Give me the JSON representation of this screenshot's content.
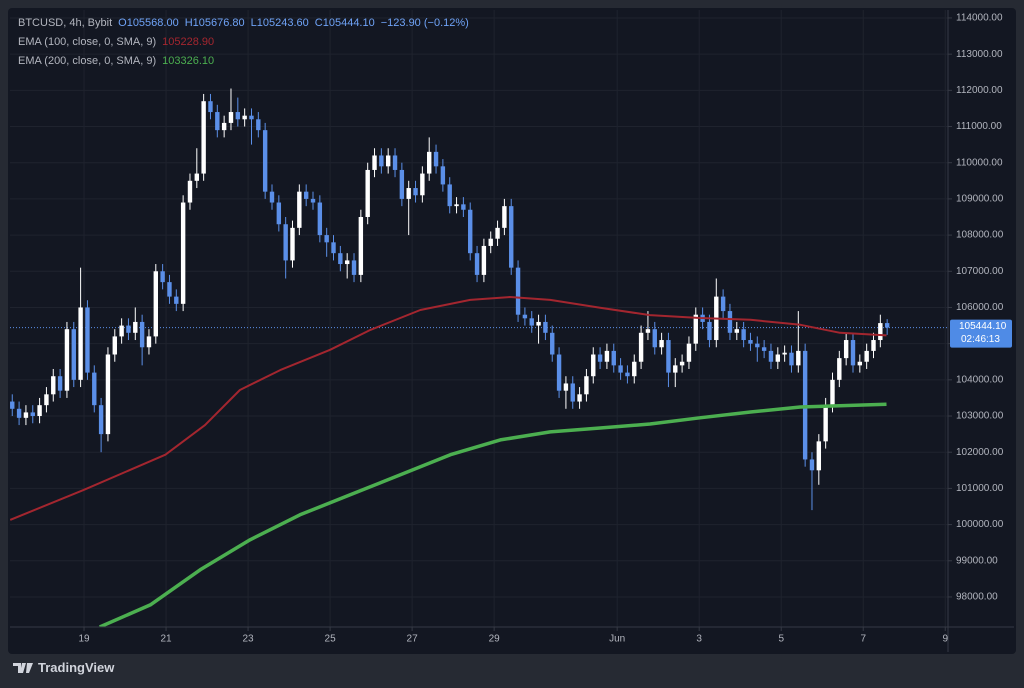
{
  "chart_data": {
    "type": "candlestick",
    "header": [
      "BTCUSD, 4h, Bybit",
      "O105568.00",
      "H105676.80",
      "L105243.60",
      "C105444.10",
      "−123.90 (−0.12%)"
    ],
    "candles": {
      "open": [
        103400,
        103200,
        102950,
        103100,
        103000,
        103300,
        103600,
        104100,
        103700,
        105400,
        104000,
        106000,
        104200,
        103300,
        102500,
        104700,
        105200,
        105500,
        105300,
        105600,
        104900,
        105200,
        107000,
        106700,
        106300,
        106100,
        108900,
        109500,
        109700,
        111700,
        111400,
        110900,
        111100,
        111400,
        111200,
        111300,
        111200,
        110900,
        109200,
        108900,
        108300,
        107300,
        108200,
        109200,
        109000,
        108900,
        108000,
        107800,
        107500,
        107200,
        107300,
        106900,
        108500,
        109800,
        110200,
        109900,
        110200,
        109800,
        109000,
        109300,
        109100,
        109700,
        110300,
        109900,
        109400,
        108800,
        108850,
        108700,
        107500,
        106900,
        107700,
        107900,
        108200,
        108800,
        107100,
        105800,
        105700,
        105500,
        105600,
        105300,
        104700,
        103700,
        103900,
        103400,
        103600,
        104100,
        104700,
        104500,
        104800,
        104400,
        104200,
        104100,
        104500,
        105300,
        105400,
        104900,
        105100,
        104200,
        104400,
        104500,
        105000,
        105800,
        105600,
        105100,
        106300,
        105900,
        105300,
        105400,
        105100,
        105000,
        104900,
        104800,
        104500,
        104700,
        104750,
        104400,
        104800,
        101800,
        101500,
        102300,
        103300,
        104000,
        104600,
        105100,
        104400,
        104500,
        104800,
        105100,
        105568
      ],
      "high": [
        103600,
        103400,
        103300,
        103300,
        103500,
        103800,
        104300,
        104300,
        105600,
        105600,
        107100,
        106200,
        104400,
        103500,
        104900,
        105400,
        105700,
        105700,
        106000,
        105800,
        105400,
        107200,
        107200,
        106900,
        106500,
        109100,
        109700,
        110400,
        111900,
        111900,
        111600,
        111300,
        112050,
        111800,
        111500,
        111500,
        111400,
        111100,
        109400,
        109100,
        108500,
        108400,
        109400,
        109400,
        109200,
        109100,
        108200,
        108000,
        107700,
        107500,
        107500,
        108700,
        110000,
        110400,
        110400,
        110400,
        110400,
        110000,
        109500,
        109500,
        109900,
        110700,
        110500,
        110100,
        109600,
        109050,
        109050,
        108900,
        107700,
        107900,
        108100,
        108400,
        109000,
        109000,
        107300,
        106000,
        105900,
        105800,
        105800,
        105500,
        104900,
        104100,
        104100,
        103800,
        104300,
        104900,
        104900,
        105000,
        105000,
        104600,
        104400,
        104700,
        105500,
        105900,
        105600,
        105300,
        105300,
        104600,
        104700,
        105200,
        106000,
        106000,
        105800,
        106800,
        106500,
        106100,
        105600,
        105600,
        105300,
        105200,
        105100,
        105000,
        104900,
        104950,
        104950,
        105900,
        105000,
        102000,
        102500,
        103500,
        104200,
        104800,
        105300,
        105300,
        104700,
        105000,
        105300,
        105800,
        105676.8
      ],
      "low": [
        103000,
        102750,
        102750,
        102800,
        102800,
        103100,
        103400,
        103500,
        103500,
        103800,
        103800,
        104000,
        103100,
        102000,
        102300,
        104500,
        105000,
        105100,
        105100,
        104400,
        104700,
        105000,
        106500,
        106100,
        105900,
        105900,
        108700,
        109300,
        109500,
        111200,
        110700,
        110700,
        110900,
        111000,
        111000,
        110500,
        110700,
        109000,
        108700,
        108100,
        106800,
        107100,
        108000,
        108800,
        108700,
        107800,
        107400,
        107300,
        107000,
        106800,
        106700,
        106700,
        108300,
        109600,
        109700,
        109700,
        109600,
        108800,
        108000,
        108900,
        108900,
        109500,
        109700,
        109200,
        108600,
        108600,
        108500,
        107300,
        106700,
        106700,
        107500,
        107700,
        108000,
        106900,
        105600,
        105500,
        105300,
        105000,
        105100,
        104500,
        103500,
        103200,
        103200,
        103200,
        103400,
        103900,
        104300,
        104300,
        104200,
        104000,
        103900,
        103900,
        104300,
        105100,
        104700,
        104700,
        103800,
        103800,
        104200,
        104300,
        104800,
        105400,
        104900,
        104900,
        105700,
        105100,
        105100,
        104900,
        104800,
        104500,
        104600,
        104300,
        104300,
        104500,
        104200,
        104200,
        101600,
        100400,
        101100,
        102100,
        103100,
        103800,
        104400,
        104200,
        104200,
        104300,
        104600,
        104900,
        105243.6
      ],
      "close": [
        103200,
        102950,
        103100,
        103000,
        103300,
        103600,
        104100,
        103700,
        105400,
        104000,
        106000,
        104200,
        103300,
        102500,
        104700,
        105200,
        105500,
        105300,
        105600,
        104900,
        105200,
        107000,
        106700,
        106300,
        106100,
        108900,
        109500,
        109700,
        111700,
        111400,
        110900,
        111100,
        111400,
        111200,
        111300,
        111200,
        110900,
        109200,
        108900,
        108300,
        107300,
        108200,
        109200,
        109000,
        108900,
        108000,
        107800,
        107500,
        107200,
        107300,
        106900,
        108500,
        109800,
        110200,
        109900,
        110200,
        109800,
        109000,
        109300,
        109100,
        109700,
        110300,
        109900,
        109400,
        108800,
        108850,
        108700,
        107500,
        106900,
        107700,
        107900,
        108200,
        108800,
        107100,
        105800,
        105700,
        105500,
        105600,
        105300,
        104700,
        103700,
        103900,
        103400,
        103600,
        104100,
        104700,
        104500,
        104800,
        104400,
        104200,
        104100,
        104500,
        105300,
        105400,
        104900,
        105100,
        104200,
        104400,
        104500,
        105000,
        105800,
        105600,
        105100,
        106300,
        105900,
        105300,
        105400,
        105100,
        105000,
        104900,
        104800,
        104500,
        104700,
        104750,
        104400,
        104800,
        101800,
        101500,
        102300,
        103300,
        104000,
        104600,
        105100,
        104400,
        104500,
        104800,
        105100,
        105568,
        105444.1
      ],
      "up_color": "#ffffff",
      "down_color": "#5b8fe8"
    },
    "series": [
      {
        "name": "EMA (200, close, 0, SMA, 9)",
        "legend_value": "103326.10",
        "color": "#4caf50",
        "width": 3.5,
        "x": [
          12.8,
          20.2,
          27.5,
          34.8,
          42.1,
          49.4,
          56.7,
          64.1,
          71.4,
          78.7,
          86,
          93.3,
          100.6,
          108,
          115.3,
          127.9
        ],
        "values": [
          97170,
          97780,
          98750,
          99580,
          100270,
          100820,
          101370,
          101930,
          102340,
          102560,
          102670,
          102780,
          102950,
          103110,
          103250,
          103326.1
        ]
      },
      {
        "name": "EMA (100, close, 0, SMA, 9)",
        "legend_value": "105228.90",
        "color": "#a3262f",
        "width": 2,
        "x": [
          -0.3,
          10.5,
          22.4,
          28.2,
          33.3,
          39.2,
          46.5,
          52.4,
          59.7,
          67,
          72.8,
          78.7,
          86,
          93.3,
          100.6,
          108,
          115.3,
          121.1,
          127.9
        ],
        "values": [
          100130,
          100960,
          101930,
          102750,
          103720,
          104270,
          104830,
          105380,
          105930,
          106210,
          106290,
          106210,
          105990,
          105790,
          105710,
          105660,
          105520,
          105300,
          105228.9
        ]
      }
    ],
    "ylim": [
      97170,
      114220
    ],
    "yticks": [
      {
        "value": 98000,
        "label": "98000.00"
      },
      {
        "value": 99000,
        "label": "99000.00"
      },
      {
        "value": 100000,
        "label": "100000.00"
      },
      {
        "value": 101000,
        "label": "101000.00"
      },
      {
        "value": 102000,
        "label": "102000.00"
      },
      {
        "value": 103000,
        "label": "103000.00"
      },
      {
        "value": 104000,
        "label": "104000.00"
      },
      {
        "value": 105000,
        "label": "105000.00"
      },
      {
        "value": 106000,
        "label": "106000.00"
      },
      {
        "value": 107000,
        "label": "107000.00"
      },
      {
        "value": 108000,
        "label": "108000.00"
      },
      {
        "value": 109000,
        "label": "109000.00"
      },
      {
        "value": 110000,
        "label": "110000.00"
      },
      {
        "value": 111000,
        "label": "111000.00"
      },
      {
        "value": 112000,
        "label": "112000.00"
      },
      {
        "value": 113000,
        "label": "113000.00"
      },
      {
        "value": 114000,
        "label": "114000.00"
      }
    ],
    "xlim": [
      -0.33,
      136.9
    ],
    "xticks": [
      {
        "value": 10.5,
        "label": "19"
      },
      {
        "value": 22.5,
        "label": "21"
      },
      {
        "value": 34.5,
        "label": "23"
      },
      {
        "value": 46.5,
        "label": "25"
      },
      {
        "value": 58.5,
        "label": "27"
      },
      {
        "value": 70.5,
        "label": "29"
      },
      {
        "value": 88.5,
        "label": "Jun"
      },
      {
        "value": 100.5,
        "label": "3"
      },
      {
        "value": 112.5,
        "label": "5"
      },
      {
        "value": 124.5,
        "label": "7"
      },
      {
        "value": 136.5,
        "label": "9"
      }
    ],
    "price_label": "105444.10",
    "countdown": "02:46:13",
    "grid": true
  },
  "footer": {
    "brand": "TradingView"
  }
}
